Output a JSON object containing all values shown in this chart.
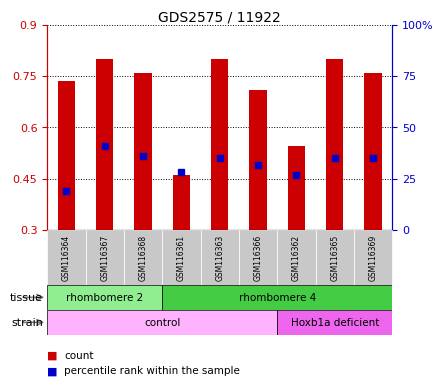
{
  "title": "GDS2575 / 11922",
  "samples": [
    "GSM116364",
    "GSM116367",
    "GSM116368",
    "GSM116361",
    "GSM116363",
    "GSM116366",
    "GSM116362",
    "GSM116365",
    "GSM116369"
  ],
  "bar_tops": [
    0.735,
    0.8,
    0.76,
    0.46,
    0.8,
    0.71,
    0.545,
    0.8,
    0.76
  ],
  "bar_bottoms": [
    0.3,
    0.3,
    0.3,
    0.3,
    0.3,
    0.3,
    0.3,
    0.3,
    0.3
  ],
  "percentile_values": [
    0.415,
    0.545,
    0.515,
    0.47,
    0.51,
    0.49,
    0.46,
    0.51,
    0.51
  ],
  "ylim": [
    0.3,
    0.9
  ],
  "yticks_left": [
    0.3,
    0.45,
    0.6,
    0.75,
    0.9
  ],
  "yticks_right": [
    0,
    25,
    50,
    75,
    100
  ],
  "bar_color": "#CC0000",
  "percentile_color": "#0000CC",
  "tissue_groups": [
    {
      "label": "rhombomere 2",
      "start": 0,
      "end": 3,
      "color": "#90EE90"
    },
    {
      "label": "rhombomere 4",
      "start": 3,
      "end": 9,
      "color": "#44CC44"
    }
  ],
  "strain_groups": [
    {
      "label": "control",
      "start": 0,
      "end": 6,
      "color": "#FFB3FF"
    },
    {
      "label": "Hoxb1a deficient",
      "start": 6,
      "end": 9,
      "color": "#EE66EE"
    }
  ],
  "tissue_label": "tissue",
  "strain_label": "strain",
  "legend_count_label": "count",
  "legend_percentile_label": "percentile rank within the sample",
  "bg_color": "#FFFFFF",
  "sample_bg_color": "#C8C8C8",
  "left_axis_color": "#CC0000",
  "right_axis_color": "#0000CC"
}
